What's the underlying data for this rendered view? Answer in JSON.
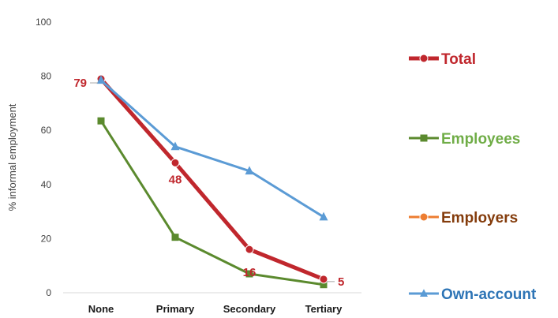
{
  "chart_data": {
    "type": "line",
    "ylabel": "% informal employment",
    "ylim": [
      0,
      100
    ],
    "yticks": [
      0,
      20,
      40,
      60,
      80,
      100
    ],
    "categories": [
      "None",
      "Primary",
      "Secondary",
      "Tertiary"
    ],
    "series": [
      {
        "name": "Total",
        "values": [
          79,
          48,
          16,
          5
        ],
        "color": "#c0272d",
        "marker": "circle",
        "data_labels": [
          "79",
          "48",
          "16",
          "5"
        ]
      },
      {
        "name": "Employees",
        "values": [
          63.5,
          20.5,
          7,
          3
        ],
        "color": "#5b8a2e",
        "marker": "square"
      },
      {
        "name": "Employers",
        "values": [
          null,
          null,
          null,
          null
        ],
        "color": "#ed7d31",
        "marker": "circle"
      },
      {
        "name": "Own-account",
        "values": [
          78.5,
          54,
          45,
          28
        ],
        "color": "#5b9bd5",
        "marker": "triangle"
      }
    ],
    "legend": {
      "placement": "right",
      "text_colors": [
        "#c0272d",
        "#70ad47",
        "#843c0c",
        "#2e75b6"
      ]
    },
    "grid": false
  }
}
